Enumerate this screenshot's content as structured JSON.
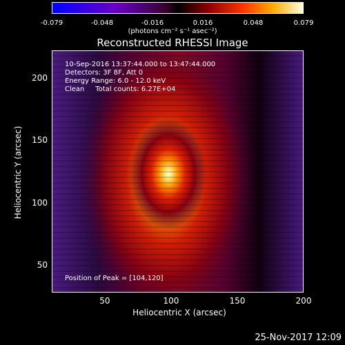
{
  "colorbar": {
    "ticks": [
      "-0.079",
      "-0.048",
      "-0.016",
      "0.016",
      "0.048",
      "0.079"
    ],
    "unit": "(photons cm⁻² s⁻¹ asec⁻²)"
  },
  "chart_data": {
    "type": "heatmap",
    "title": "Reconstructed RHESSI Image",
    "xlabel": "Heliocentric X (arcsec)",
    "ylabel": "Heliocentric Y (arcsec)",
    "xlim": [
      10,
      200
    ],
    "ylim": [
      28,
      222
    ],
    "xticks": [
      "50",
      "100",
      "150",
      "200"
    ],
    "yticks": [
      "50",
      "100",
      "150",
      "200"
    ],
    "colorscale": {
      "min": -0.079,
      "max": 0.079
    },
    "peak": {
      "x": 104,
      "y": 120
    },
    "annotations": {
      "line1": "10-Sep-2016 13:37:44.000 to 13:47:44.000",
      "line2": "Detectors: 3F 8F, Att 0",
      "line3": "Energy Range: 6.0 - 12.0 keV",
      "line4": "Clean     Total counts: 6.27E+04",
      "peak_label": "Position of Peak = [104,120]"
    }
  },
  "footer": {
    "date": "25-Nov-2017 12:09"
  }
}
